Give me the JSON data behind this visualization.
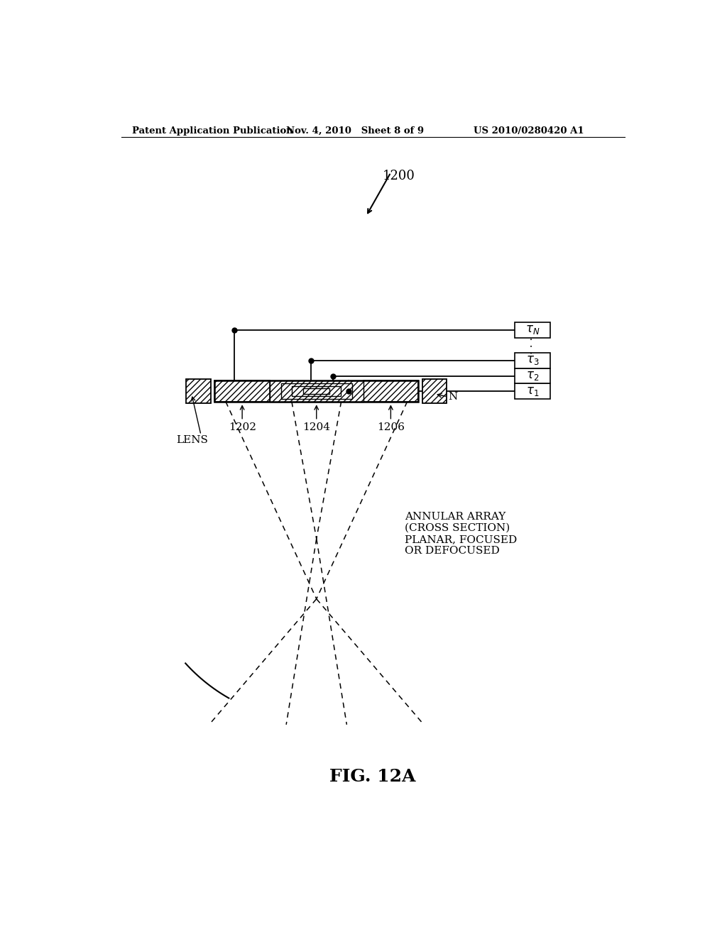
{
  "bg_color": "#ffffff",
  "header_left": "Patent Application Publication",
  "header_mid": "Nov. 4, 2010   Sheet 8 of 9",
  "header_right": "US 2010/0280420 A1",
  "fig_label": "FIG. 12A",
  "label_1200": "1200",
  "label_N": "N",
  "label_LENS": "LENS",
  "label_1202": "1202",
  "label_1204": "1204",
  "label_1206": "1206",
  "annular_text": "ANNULAR ARRAY\n(CROSS SECTION)\nPLANAR, FOCUSED\nOR DEFOCUSED",
  "line_color": "#000000"
}
